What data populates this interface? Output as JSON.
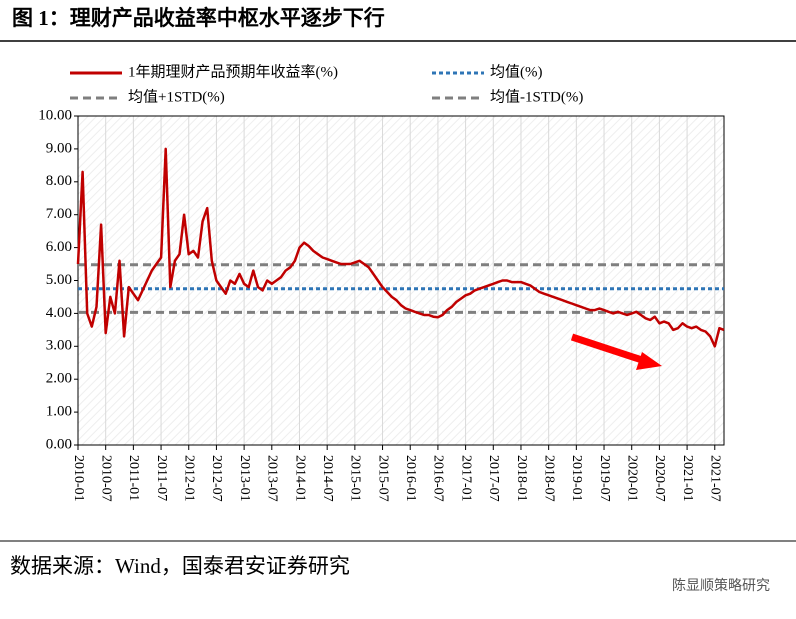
{
  "chart_data": {
    "type": "line",
    "title": "图 1：理财产品收益率中枢水平逐步下行",
    "source": "数据来源：Wind，国泰君安证券研究",
    "watermark": "陈显顺策略研究",
    "categories": [
      "2010-01",
      null,
      null,
      null,
      null,
      null,
      "2010-07",
      null,
      null,
      null,
      null,
      null,
      "2011-01",
      null,
      null,
      null,
      null,
      null,
      "2011-07",
      null,
      null,
      null,
      null,
      null,
      "2012-01",
      null,
      null,
      null,
      null,
      null,
      "2012-07",
      null,
      null,
      null,
      null,
      null,
      "2013-01",
      null,
      null,
      null,
      null,
      null,
      "2013-07",
      null,
      null,
      null,
      null,
      null,
      "2014-01",
      null,
      null,
      null,
      null,
      null,
      "2014-07",
      null,
      null,
      null,
      null,
      null,
      "2015-01",
      null,
      null,
      null,
      null,
      null,
      "2015-07",
      null,
      null,
      null,
      null,
      null,
      "2016-01",
      null,
      null,
      null,
      null,
      null,
      "2016-07",
      null,
      null,
      null,
      null,
      null,
      "2017-01",
      null,
      null,
      null,
      null,
      null,
      "2017-07",
      null,
      null,
      null,
      null,
      null,
      "2018-01",
      null,
      null,
      null,
      null,
      null,
      "2018-07",
      null,
      null,
      null,
      null,
      null,
      "2019-01",
      null,
      null,
      null,
      null,
      null,
      "2019-07",
      null,
      null,
      null,
      null,
      null,
      "2020-01",
      null,
      null,
      null,
      null,
      null,
      "2020-07",
      null,
      null,
      null,
      null,
      null,
      "2021-01",
      null,
      null,
      null,
      null,
      null,
      "2021-07",
      null,
      null
    ],
    "series": [
      {
        "name": "1年期理财产品预期年收益率(%)",
        "color": "#c00000",
        "values": [
          5.5,
          8.3,
          4.0,
          3.6,
          4.2,
          6.7,
          3.4,
          4.5,
          4.0,
          5.6,
          3.3,
          4.8,
          4.6,
          4.4,
          4.7,
          5.0,
          5.3,
          5.5,
          5.7,
          9.0,
          4.8,
          5.6,
          5.8,
          7.0,
          5.8,
          5.9,
          5.7,
          6.8,
          7.2,
          5.6,
          5.0,
          4.8,
          4.6,
          5.0,
          4.9,
          5.2,
          4.9,
          4.8,
          5.3,
          4.8,
          4.7,
          5.0,
          4.9,
          5.0,
          5.1,
          5.3,
          5.4,
          5.6,
          6.0,
          6.15,
          6.05,
          5.9,
          5.8,
          5.7,
          5.65,
          5.6,
          5.55,
          5.5,
          5.5,
          5.5,
          5.55,
          5.6,
          5.5,
          5.4,
          5.2,
          5.0,
          4.8,
          4.65,
          4.5,
          4.4,
          4.25,
          4.15,
          4.1,
          4.05,
          4.0,
          3.95,
          3.95,
          3.9,
          3.88,
          3.95,
          4.1,
          4.2,
          4.35,
          4.45,
          4.55,
          4.6,
          4.7,
          4.75,
          4.8,
          4.85,
          4.9,
          4.95,
          5.0,
          5.0,
          4.95,
          4.95,
          4.95,
          4.9,
          4.85,
          4.75,
          4.65,
          4.6,
          4.55,
          4.5,
          4.45,
          4.4,
          4.35,
          4.3,
          4.25,
          4.2,
          4.15,
          4.1,
          4.1,
          4.15,
          4.1,
          4.05,
          4.0,
          4.05,
          4.0,
          3.95,
          4.0,
          4.05,
          3.95,
          3.85,
          3.8,
          3.9,
          3.7,
          3.75,
          3.7,
          3.5,
          3.55,
          3.7,
          3.6,
          3.55,
          3.6,
          3.5,
          3.45,
          3.3,
          3.0,
          3.55,
          3.5
        ]
      }
    ],
    "hlines": [
      {
        "name": "均值(%)",
        "color": "#2e75b6",
        "value": 4.75
      },
      {
        "name": "均值+1STD(%)",
        "color": "#7f7f7f",
        "value": 5.48
      },
      {
        "name": "均值-1STD(%)",
        "color": "#7f7f7f",
        "value": 4.03
      }
    ],
    "ylim": [
      0,
      10
    ],
    "yticks": [
      {
        "value": 0,
        "label": "0.00"
      },
      {
        "value": 1,
        "label": "1.00"
      },
      {
        "value": 2,
        "label": "2.00"
      },
      {
        "value": 3,
        "label": "3.00"
      },
      {
        "value": 4,
        "label": "4.00"
      },
      {
        "value": 5,
        "label": "5.00"
      },
      {
        "value": 6,
        "label": "6.00"
      },
      {
        "value": 7,
        "label": "7.00"
      },
      {
        "value": 8,
        "label": "8.00"
      },
      {
        "value": 9,
        "label": "9.00"
      },
      {
        "value": 10,
        "label": "10.00"
      }
    ],
    "grid": true
  }
}
